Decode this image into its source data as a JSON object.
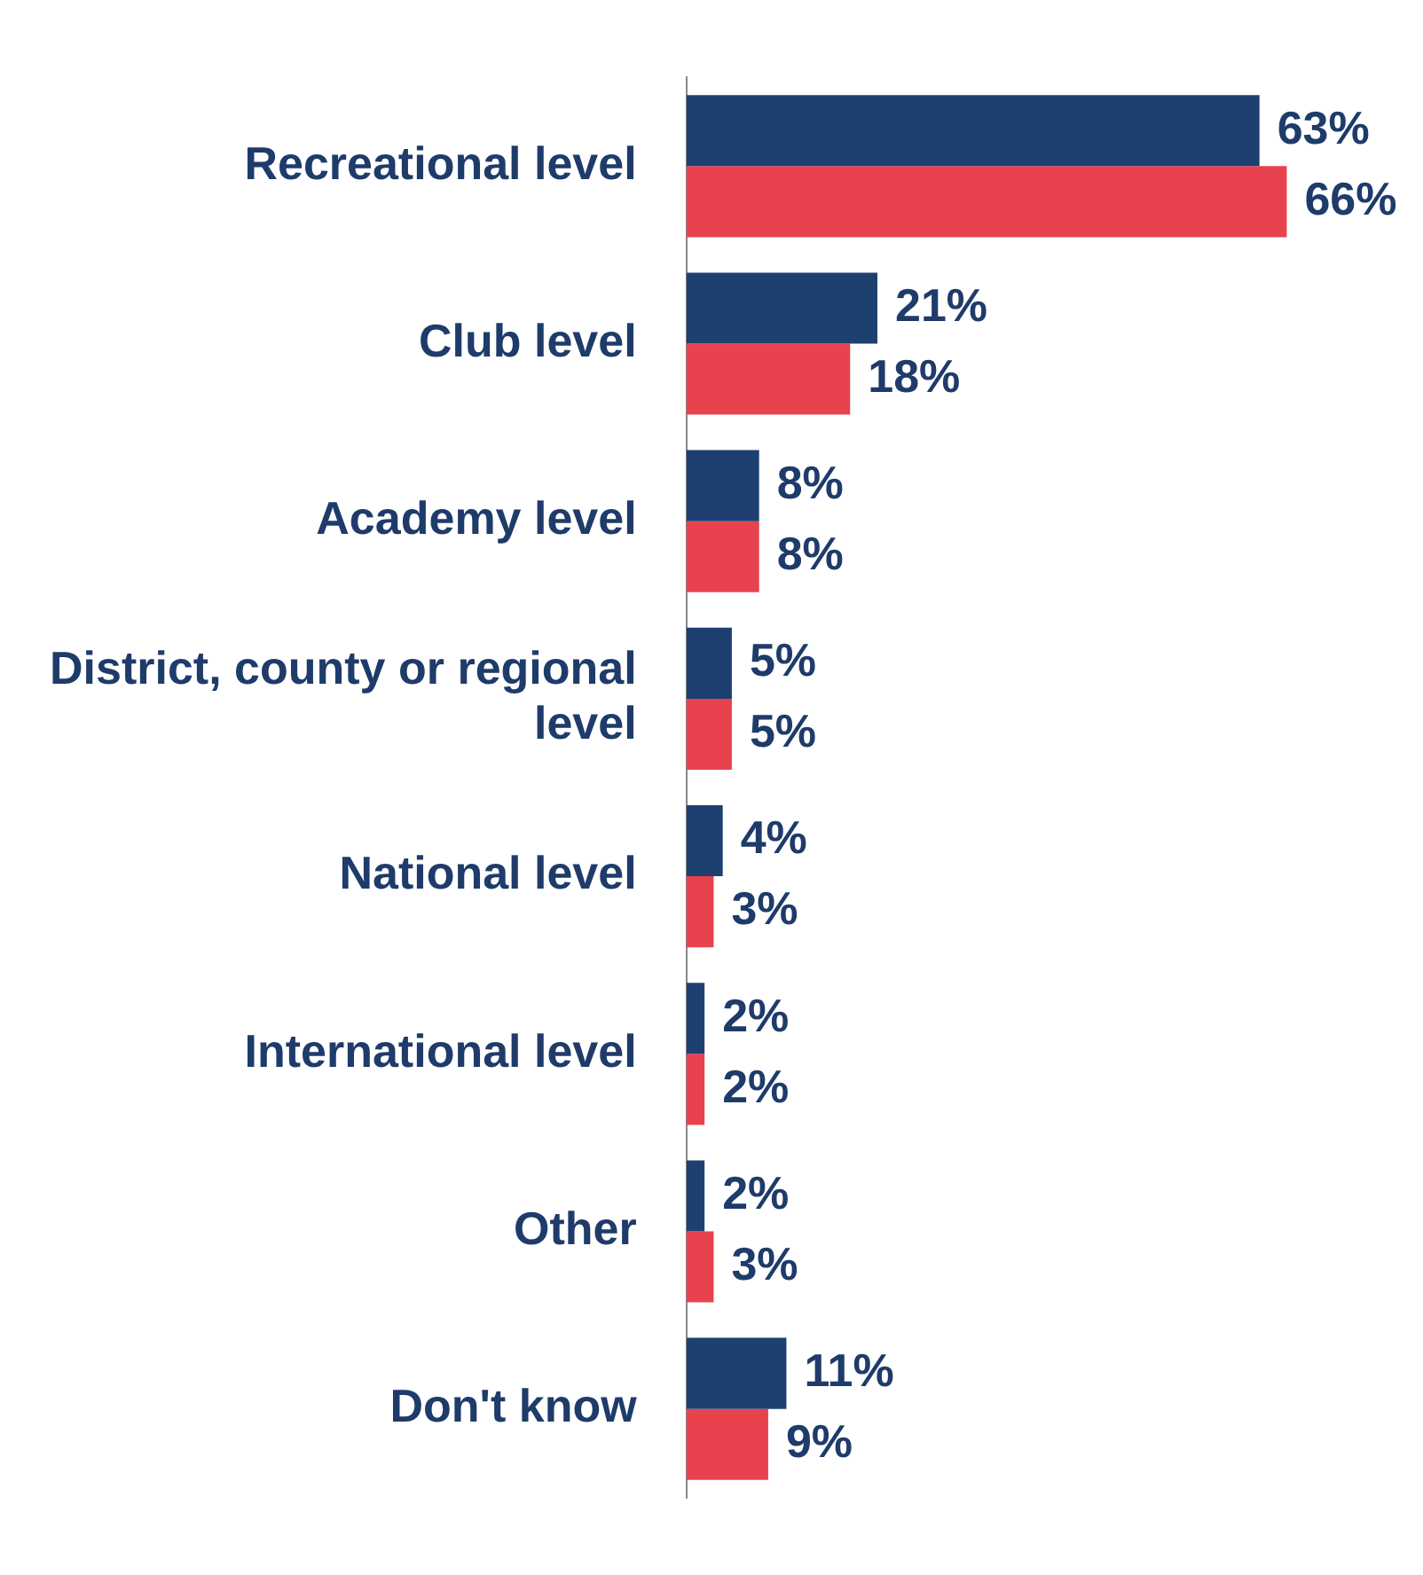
{
  "chart_data": {
    "type": "bar",
    "orientation": "horizontal",
    "categories": [
      "Recreational level",
      "Club level",
      "Academy level",
      "District, county or regional level",
      "National level",
      "International level",
      "Other",
      "Don't know"
    ],
    "series": [
      {
        "color": "#1e4070",
        "values": [
          63,
          21,
          8,
          5,
          4,
          2,
          2,
          11
        ],
        "value_labels": [
          "63%",
          "21%",
          "8%",
          "5%",
          "4%",
          "2%",
          "2%",
          "11%"
        ]
      },
      {
        "color": "#e8424f",
        "values": [
          66,
          18,
          8,
          5,
          3,
          2,
          3,
          9
        ],
        "value_labels": [
          "66%",
          "18%",
          "8%",
          "5%",
          "3%",
          "2%",
          "3%",
          "9%"
        ]
      }
    ],
    "legend": false,
    "tick_labels": "y"
  }
}
